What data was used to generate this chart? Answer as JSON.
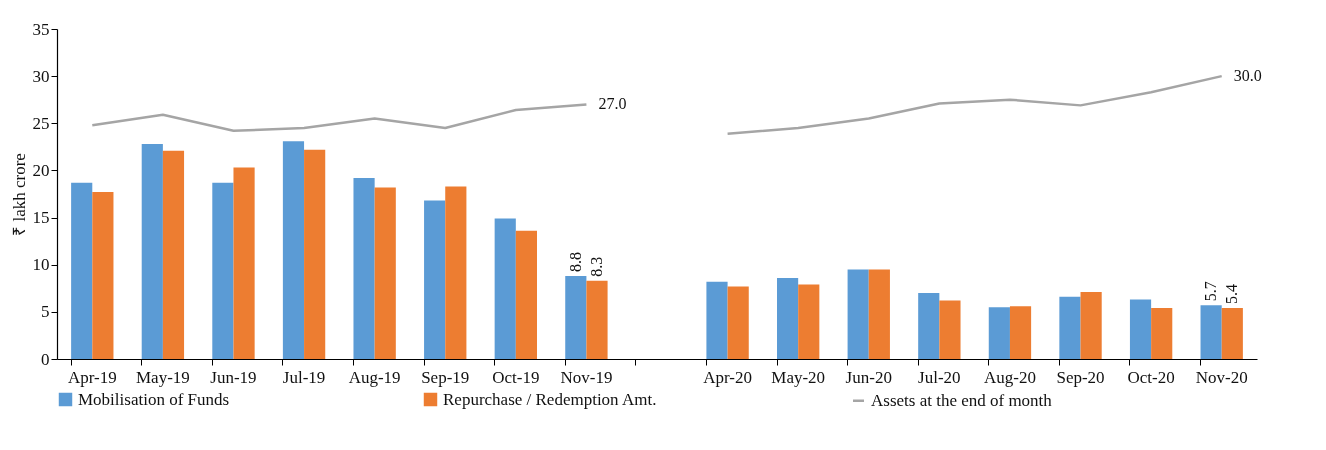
{
  "chart_data": {
    "type": "bar",
    "ylabel": "₹ lakh crore",
    "categories": [
      "Apr-19",
      "May-19",
      "Jun-19",
      "Jul-19",
      "Aug-19",
      "Sep-19",
      "Oct-19",
      "Nov-19",
      null,
      "Apr-20",
      "May-20",
      "Jun-20",
      "Jul-20",
      "Aug-20",
      "Sep-20",
      "Oct-20",
      "Nov-20"
    ],
    "series": [
      {
        "name": "Mobilisation of Funds",
        "color": "#5b9bd5",
        "values": [
          18.7,
          22.8,
          18.7,
          23.1,
          19.2,
          16.8,
          14.9,
          8.8,
          null,
          8.2,
          8.6,
          9.5,
          7.0,
          5.5,
          6.6,
          6.3,
          5.7
        ],
        "value_labels": [
          null,
          null,
          null,
          null,
          null,
          null,
          null,
          "8.8",
          null,
          null,
          null,
          null,
          null,
          null,
          null,
          null,
          "5.7"
        ]
      },
      {
        "name": "Repurchase / Redemption Amt.",
        "color": "#ed7d31",
        "values": [
          17.7,
          22.1,
          20.3,
          22.2,
          18.2,
          18.3,
          13.6,
          8.3,
          null,
          7.7,
          7.9,
          9.5,
          6.2,
          5.6,
          7.1,
          5.4,
          5.4
        ],
        "value_labels": [
          null,
          null,
          null,
          null,
          null,
          null,
          null,
          "8.3",
          null,
          null,
          null,
          null,
          null,
          null,
          null,
          null,
          "5.4"
        ]
      },
      {
        "name": "Assets at the end of month",
        "type": "line",
        "color": "#a5a5a5",
        "values": [
          24.8,
          25.9,
          24.2,
          24.5,
          25.5,
          24.5,
          26.4,
          27.0,
          null,
          23.9,
          24.5,
          25.5,
          27.1,
          27.5,
          26.9,
          28.3,
          30.0
        ],
        "value_labels": [
          null,
          null,
          null,
          null,
          null,
          null,
          null,
          "27.0",
          null,
          null,
          null,
          null,
          null,
          null,
          null,
          null,
          "30.0"
        ]
      }
    ],
    "ylim": [
      0,
      35
    ],
    "yticks": [
      0,
      5,
      10,
      15,
      20,
      25,
      30,
      35
    ],
    "legend": "bottom",
    "grid": false
  }
}
